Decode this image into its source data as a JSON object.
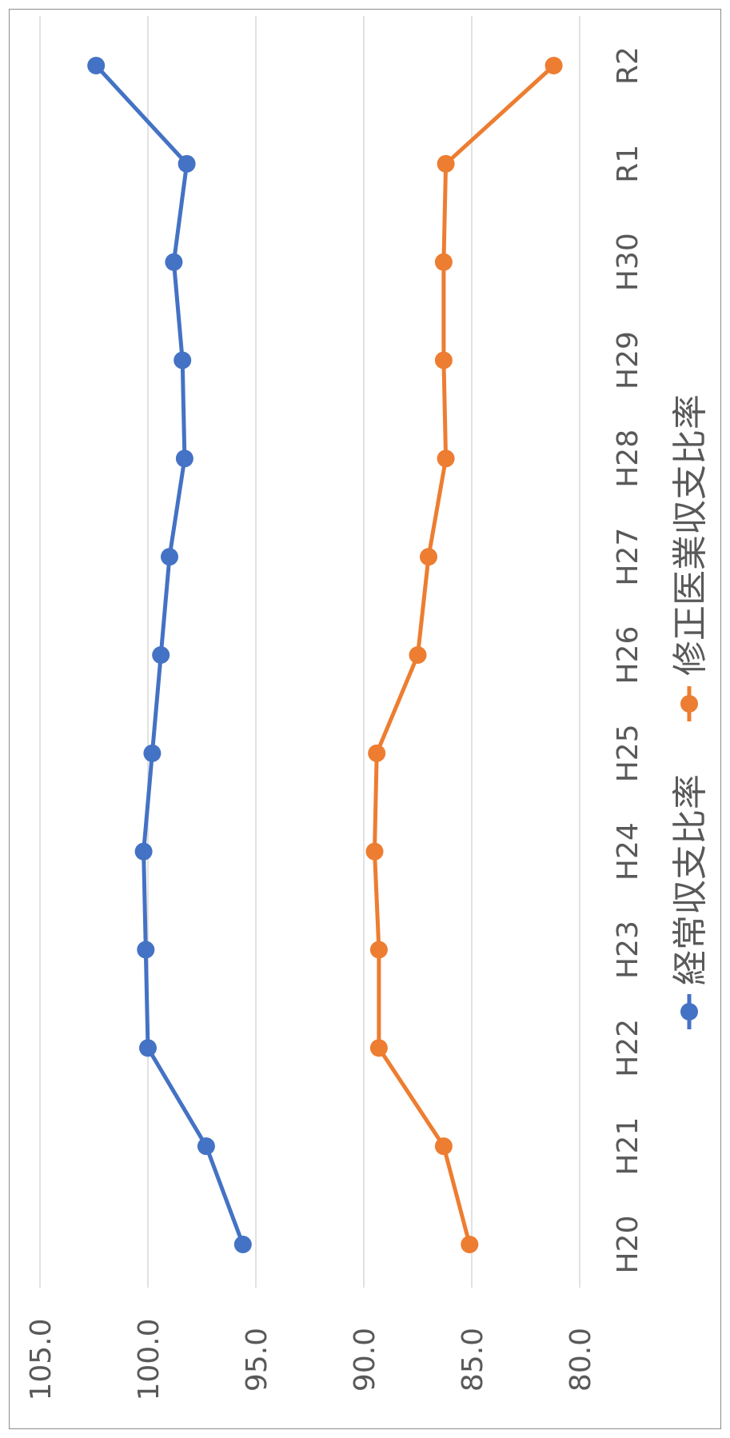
{
  "chart_data": {
    "type": "line",
    "orientation": "rotated-90-clockwise",
    "categories": [
      "H20",
      "H21",
      "H22",
      "H23",
      "H24",
      "H25",
      "H26",
      "H27",
      "H28",
      "H29",
      "H30",
      "R1",
      "R2"
    ],
    "series": [
      {
        "name": "経常収支比率",
        "color": "#4472C4",
        "values": [
          95.6,
          97.3,
          100.0,
          100.1,
          100.2,
          99.8,
          99.4,
          99.0,
          98.3,
          98.4,
          98.8,
          98.2,
          102.4
        ]
      },
      {
        "name": "修正医業収支比率",
        "color": "#ED7D31",
        "values": [
          85.1,
          86.3,
          89.3,
          89.3,
          89.5,
          89.4,
          87.5,
          87.0,
          86.2,
          86.3,
          86.3,
          86.2,
          81.2
        ]
      }
    ],
    "ylim": [
      80.0,
      105.0
    ],
    "yticks": [
      "105.0",
      "100.0",
      "95.0",
      "90.0",
      "85.0",
      "80.0"
    ],
    "grid": true,
    "legend_position": "bottom"
  }
}
